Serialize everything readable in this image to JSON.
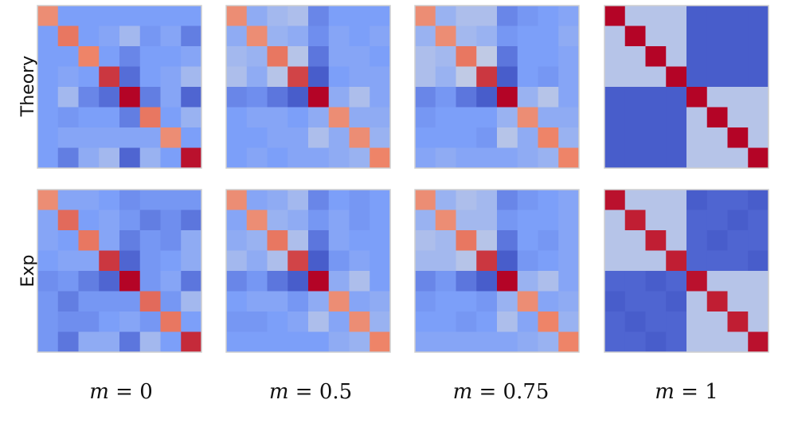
{
  "chart_data": {
    "type": "heatmap",
    "colormap": "coolwarm",
    "value_range": [
      -1,
      1
    ],
    "rows": [
      {
        "label": "Theory"
      },
      {
        "label": "Exp"
      }
    ],
    "columns": [
      {
        "var": "m",
        "rel": " = ",
        "value": "0"
      },
      {
        "var": "m",
        "rel": " = ",
        "value": "0.5"
      },
      {
        "var": "m",
        "rel": " = ",
        "value": "0.75"
      },
      {
        "var": "m",
        "rel": " = ",
        "value": "1"
      }
    ],
    "panels": [
      [
        [
          [
            0.45,
            -0.5,
            -0.5,
            -0.5,
            -0.5,
            -0.5,
            -0.5,
            -0.5
          ],
          [
            -0.5,
            0.55,
            -0.5,
            -0.45,
            -0.3,
            -0.55,
            -0.45,
            -0.7
          ],
          [
            -0.5,
            -0.5,
            0.5,
            -0.5,
            -0.65,
            -0.5,
            -0.5,
            -0.45
          ],
          [
            -0.5,
            -0.45,
            -0.5,
            0.8,
            -0.8,
            -0.5,
            -0.45,
            -0.3
          ],
          [
            -0.5,
            -0.3,
            -0.65,
            -0.8,
            1.0,
            -0.7,
            -0.45,
            -0.85
          ],
          [
            -0.5,
            -0.55,
            -0.5,
            -0.5,
            -0.7,
            0.55,
            -0.5,
            -0.35
          ],
          [
            -0.5,
            -0.45,
            -0.45,
            -0.45,
            -0.45,
            -0.45,
            0.45,
            -0.5
          ],
          [
            -0.5,
            -0.7,
            -0.4,
            -0.3,
            -0.85,
            -0.35,
            -0.5,
            0.95
          ]
        ],
        [
          [
            0.45,
            -0.4,
            -0.3,
            -0.25,
            -0.65,
            -0.5,
            -0.5,
            -0.5
          ],
          [
            -0.4,
            0.45,
            -0.35,
            -0.4,
            -0.6,
            -0.45,
            -0.5,
            -0.45
          ],
          [
            -0.3,
            -0.35,
            0.55,
            -0.2,
            -0.75,
            -0.45,
            -0.45,
            -0.5
          ],
          [
            -0.25,
            -0.4,
            -0.2,
            0.75,
            -0.9,
            -0.5,
            -0.45,
            -0.45
          ],
          [
            -0.65,
            -0.6,
            -0.75,
            -0.9,
            1.0,
            -0.4,
            -0.25,
            -0.45
          ],
          [
            -0.5,
            -0.45,
            -0.45,
            -0.5,
            -0.4,
            0.45,
            -0.4,
            -0.4
          ],
          [
            -0.5,
            -0.5,
            -0.45,
            -0.45,
            -0.25,
            -0.4,
            0.45,
            -0.35
          ],
          [
            -0.5,
            -0.45,
            -0.5,
            -0.45,
            -0.45,
            -0.4,
            -0.35,
            0.5
          ]
        ],
        [
          [
            0.45,
            -0.35,
            -0.25,
            -0.25,
            -0.65,
            -0.55,
            -0.5,
            -0.45
          ],
          [
            -0.35,
            0.45,
            -0.3,
            -0.35,
            -0.55,
            -0.5,
            -0.5,
            -0.4
          ],
          [
            -0.25,
            -0.3,
            0.55,
            -0.15,
            -0.75,
            -0.5,
            -0.5,
            -0.45
          ],
          [
            -0.25,
            -0.35,
            -0.15,
            0.8,
            -0.9,
            -0.5,
            -0.55,
            -0.45
          ],
          [
            -0.65,
            -0.55,
            -0.75,
            -0.9,
            1.0,
            -0.35,
            -0.2,
            -0.45
          ],
          [
            -0.55,
            -0.5,
            -0.5,
            -0.5,
            -0.35,
            0.45,
            -0.4,
            -0.4
          ],
          [
            -0.5,
            -0.5,
            -0.5,
            -0.55,
            -0.2,
            -0.4,
            0.5,
            -0.35
          ],
          [
            -0.45,
            -0.4,
            -0.45,
            -0.45,
            -0.45,
            -0.4,
            -0.35,
            0.5
          ]
        ],
        [
          [
            1.0,
            -0.2,
            -0.2,
            -0.2,
            -0.9,
            -0.9,
            -0.9,
            -0.9
          ],
          [
            -0.2,
            1.0,
            -0.2,
            -0.2,
            -0.9,
            -0.9,
            -0.9,
            -0.9
          ],
          [
            -0.2,
            -0.2,
            1.0,
            -0.2,
            -0.9,
            -0.9,
            -0.9,
            -0.9
          ],
          [
            -0.2,
            -0.2,
            -0.2,
            1.0,
            -0.9,
            -0.9,
            -0.9,
            -0.9
          ],
          [
            -0.9,
            -0.9,
            -0.9,
            -0.9,
            1.0,
            -0.2,
            -0.2,
            -0.2
          ],
          [
            -0.9,
            -0.9,
            -0.9,
            -0.9,
            -0.2,
            1.0,
            -0.2,
            -0.2
          ],
          [
            -0.9,
            -0.9,
            -0.9,
            -0.9,
            -0.2,
            -0.2,
            1.0,
            -0.2
          ],
          [
            -0.9,
            -0.9,
            -0.9,
            -0.9,
            -0.2,
            -0.2,
            -0.2,
            1.0
          ]
        ]
      ],
      [
        [
          [
            0.45,
            -0.45,
            -0.45,
            -0.5,
            -0.6,
            -0.55,
            -0.55,
            -0.55
          ],
          [
            -0.45,
            0.6,
            -0.5,
            -0.45,
            -0.55,
            -0.7,
            -0.6,
            -0.75
          ],
          [
            -0.45,
            -0.5,
            0.55,
            -0.45,
            -0.7,
            -0.55,
            -0.6,
            -0.4
          ],
          [
            -0.5,
            -0.45,
            -0.45,
            0.8,
            -0.85,
            -0.55,
            -0.5,
            -0.4
          ],
          [
            -0.6,
            -0.55,
            -0.7,
            -0.85,
            1.0,
            -0.55,
            -0.45,
            -0.75
          ],
          [
            -0.55,
            -0.7,
            -0.55,
            -0.55,
            -0.55,
            0.6,
            -0.55,
            -0.3
          ],
          [
            -0.55,
            -0.6,
            -0.6,
            -0.5,
            -0.45,
            -0.55,
            0.55,
            -0.5
          ],
          [
            -0.55,
            -0.75,
            -0.4,
            -0.4,
            -0.75,
            -0.3,
            -0.5,
            0.85
          ]
        ],
        [
          [
            0.45,
            -0.45,
            -0.4,
            -0.3,
            -0.65,
            -0.5,
            -0.55,
            -0.5
          ],
          [
            -0.45,
            0.45,
            -0.35,
            -0.4,
            -0.55,
            -0.45,
            -0.55,
            -0.5
          ],
          [
            -0.4,
            -0.35,
            0.55,
            -0.25,
            -0.75,
            -0.45,
            -0.5,
            -0.5
          ],
          [
            -0.3,
            -0.4,
            -0.25,
            0.75,
            -0.9,
            -0.55,
            -0.45,
            -0.5
          ],
          [
            -0.65,
            -0.55,
            -0.75,
            -0.9,
            1.0,
            -0.4,
            -0.25,
            -0.5
          ],
          [
            -0.5,
            -0.45,
            -0.45,
            -0.55,
            -0.4,
            0.45,
            -0.45,
            -0.4
          ],
          [
            -0.55,
            -0.55,
            -0.5,
            -0.45,
            -0.25,
            -0.45,
            0.45,
            -0.35
          ],
          [
            -0.5,
            -0.5,
            -0.5,
            -0.5,
            -0.5,
            -0.4,
            -0.35,
            0.5
          ]
        ],
        [
          [
            0.45,
            -0.35,
            -0.25,
            -0.3,
            -0.65,
            -0.55,
            -0.5,
            -0.45
          ],
          [
            -0.35,
            0.45,
            -0.3,
            -0.3,
            -0.55,
            -0.5,
            -0.5,
            -0.45
          ],
          [
            -0.25,
            -0.3,
            0.55,
            -0.2,
            -0.75,
            -0.5,
            -0.55,
            -0.45
          ],
          [
            -0.3,
            -0.3,
            -0.2,
            0.8,
            -0.9,
            -0.55,
            -0.5,
            -0.45
          ],
          [
            -0.65,
            -0.55,
            -0.75,
            -0.9,
            1.0,
            -0.35,
            -0.25,
            -0.45
          ],
          [
            -0.55,
            -0.5,
            -0.5,
            -0.55,
            -0.35,
            0.45,
            -0.45,
            -0.4
          ],
          [
            -0.5,
            -0.5,
            -0.55,
            -0.5,
            -0.25,
            -0.45,
            0.5,
            -0.35
          ],
          [
            -0.45,
            -0.45,
            -0.45,
            -0.45,
            -0.45,
            -0.4,
            -0.35,
            0.5
          ]
        ],
        [
          [
            0.95,
            -0.2,
            -0.2,
            -0.2,
            -0.9,
            -0.85,
            -0.85,
            -0.9
          ],
          [
            -0.2,
            0.9,
            -0.2,
            -0.2,
            -0.85,
            -0.85,
            -0.9,
            -0.85
          ],
          [
            -0.2,
            -0.2,
            0.9,
            -0.2,
            -0.85,
            -0.9,
            -0.85,
            -0.85
          ],
          [
            -0.2,
            -0.2,
            -0.2,
            0.9,
            -0.85,
            -0.85,
            -0.85,
            -0.9
          ],
          [
            -0.85,
            -0.85,
            -0.9,
            -0.85,
            0.95,
            -0.2,
            -0.2,
            -0.2
          ],
          [
            -0.9,
            -0.85,
            -0.85,
            -0.9,
            -0.2,
            0.9,
            -0.2,
            -0.2
          ],
          [
            -0.85,
            -0.9,
            -0.85,
            -0.85,
            -0.2,
            -0.2,
            0.9,
            -0.2
          ],
          [
            -0.85,
            -0.85,
            -0.9,
            -0.85,
            -0.2,
            -0.2,
            -0.2,
            0.95
          ]
        ]
      ]
    ]
  }
}
